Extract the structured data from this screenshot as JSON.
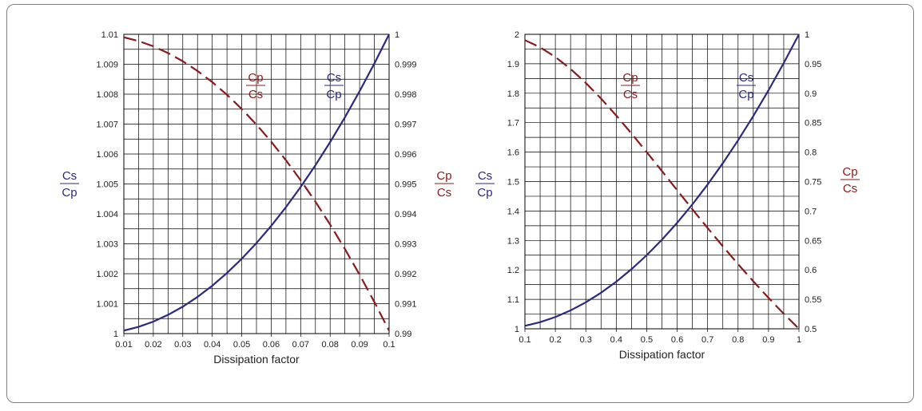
{
  "colors": {
    "blue": "#2b2a80",
    "red": "#8b1a1a",
    "grid": "#000000"
  },
  "chart_data": [
    {
      "type": "line",
      "xlabel": "Dissipation factor",
      "xlim": [
        0.01,
        0.1
      ],
      "x_ticks": [
        "0.01",
        "0.02",
        "0.03",
        "0.04",
        "0.05",
        "0.06",
        "0.07",
        "0.08",
        "0.09",
        "0.1"
      ],
      "y_left_label": {
        "num": "Cs",
        "den": "Cp"
      },
      "y_right_label": {
        "num": "Cp",
        "den": "Cs"
      },
      "y_left_lim": [
        1,
        1.01
      ],
      "y_left_ticks": [
        "1",
        "1.001",
        "1.002",
        "1.003",
        "1.004",
        "1.005",
        "1.006",
        "1.007",
        "1.008",
        "1.009",
        "1.01"
      ],
      "y_right_lim": [
        0.99,
        1
      ],
      "y_right_ticks": [
        "0.99",
        "0.991",
        "0.992",
        "0.993",
        "0.994",
        "0.995",
        "0.996",
        "0.997",
        "0.998",
        "0.999",
        "1"
      ],
      "series": [
        {
          "name": "Cs/Cp",
          "axis": "left",
          "style": "solid",
          "color": "blue",
          "label": {
            "num": "Cs",
            "den": "Cp"
          },
          "x": [
            0.01,
            0.015,
            0.02,
            0.025,
            0.03,
            0.035,
            0.04,
            0.045,
            0.05,
            0.055,
            0.06,
            0.065,
            0.07,
            0.075,
            0.08,
            0.085,
            0.09,
            0.095,
            0.1
          ],
          "values": [
            1.0001,
            1.000225,
            1.0004,
            1.000625,
            1.0009,
            1.001225,
            1.0016,
            1.002025,
            1.0025,
            1.003025,
            1.0036,
            1.004225,
            1.0049,
            1.005625,
            1.0064,
            1.007225,
            1.0081,
            1.009025,
            1.01
          ]
        },
        {
          "name": "Cp/Cs",
          "axis": "right",
          "style": "dashed",
          "color": "red",
          "label": {
            "num": "Cp",
            "den": "Cs"
          },
          "x": [
            0.01,
            0.015,
            0.02,
            0.025,
            0.03,
            0.035,
            0.04,
            0.045,
            0.05,
            0.055,
            0.06,
            0.065,
            0.07,
            0.075,
            0.08,
            0.085,
            0.09,
            0.095,
            0.1
          ],
          "values": [
            0.9999,
            0.999775,
            0.9996,
            0.999375,
            0.9991,
            0.998776,
            0.998403,
            0.997979,
            0.997506,
            0.996983,
            0.996412,
            0.995792,
            0.995124,
            0.994408,
            0.993641,
            0.992827,
            0.991966,
            0.991055,
            0.990099
          ]
        }
      ]
    },
    {
      "type": "line",
      "xlabel": "Dissipation factor",
      "xlim": [
        0.1,
        1
      ],
      "x_ticks": [
        "0.1",
        "0.2",
        "0.3",
        "0.4",
        "0.5",
        "0.6",
        "0.7",
        "0.8",
        "0.9",
        "1"
      ],
      "y_left_label": {
        "num": "Cs",
        "den": "Cp"
      },
      "y_right_label": {
        "num": "Cp",
        "den": "Cs"
      },
      "y_left_lim": [
        1,
        2
      ],
      "y_left_ticks": [
        "1",
        "1.1",
        "1.2",
        "1.3",
        "1.4",
        "1.5",
        "1.6",
        "1.7",
        "1.8",
        "1.9",
        "2"
      ],
      "y_right_lim": [
        0.5,
        1
      ],
      "y_right_ticks": [
        "0.5",
        "0.55",
        "0.6",
        "0.65",
        "0.7",
        "0.75",
        "0.8",
        "0.85",
        "0.9",
        "0.95",
        "1"
      ],
      "series": [
        {
          "name": "Cs/Cp",
          "axis": "left",
          "style": "solid",
          "color": "blue",
          "label": {
            "num": "Cs",
            "den": "Cp"
          },
          "x": [
            0.1,
            0.15,
            0.2,
            0.25,
            0.3,
            0.35,
            0.4,
            0.45,
            0.5,
            0.55,
            0.6,
            0.65,
            0.7,
            0.75,
            0.8,
            0.85,
            0.9,
            0.95,
            1
          ],
          "values": [
            1.01,
            1.0225,
            1.04,
            1.0625,
            1.09,
            1.1225,
            1.16,
            1.2025,
            1.25,
            1.3025,
            1.36,
            1.4225,
            1.49,
            1.5625,
            1.64,
            1.7225,
            1.81,
            1.9025,
            2
          ]
        },
        {
          "name": "Cp/Cs",
          "axis": "right",
          "style": "dashed",
          "color": "red",
          "label": {
            "num": "Cp",
            "den": "Cs"
          },
          "x": [
            0.1,
            0.15,
            0.2,
            0.25,
            0.3,
            0.35,
            0.4,
            0.45,
            0.5,
            0.55,
            0.6,
            0.65,
            0.7,
            0.75,
            0.8,
            0.85,
            0.9,
            0.95,
            1
          ],
          "values": [
            0.9901,
            0.978,
            0.9615,
            0.9412,
            0.9174,
            0.8909,
            0.8621,
            0.8316,
            0.8,
            0.7678,
            0.7353,
            0.703,
            0.6711,
            0.64,
            0.6098,
            0.5806,
            0.5525,
            0.5256,
            0.5
          ]
        }
      ]
    }
  ]
}
